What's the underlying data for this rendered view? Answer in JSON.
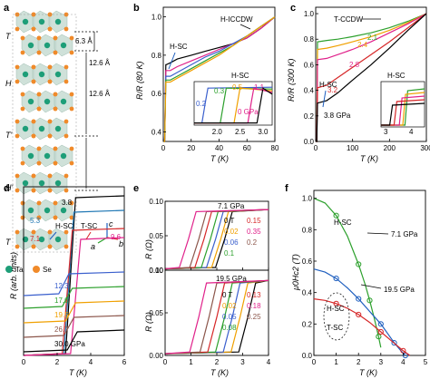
{
  "panels": {
    "a": {
      "label": "a",
      "layers": [
        "T",
        "H",
        "T'",
        "H'",
        "T"
      ],
      "dims": [
        "6.3 Å",
        "12.6 Å",
        "12.6 Å"
      ],
      "axes": {
        "c": "c",
        "a": "a",
        "b": "b"
      },
      "legend": [
        {
          "name": "Ta",
          "color": "#1e9e78"
        },
        {
          "name": "Se",
          "color": "#f08a2a"
        }
      ]
    },
    "b": {
      "label": "b",
      "ylabel": "R/R (80 K)",
      "xlabel": "T (K)",
      "ann_hiccdw": "H-ICCDW",
      "ann_hsc": "H-SC",
      "inset_title": "H-SC",
      "inset_labels": [
        "0.2",
        "0.3",
        "0.5",
        "1.1",
        "0 GPa"
      ]
    },
    "c": {
      "label": "c",
      "ylabel": "R/R (300 K)",
      "xlabel": "T (K)",
      "ann_tccdw": "T-CCDW",
      "ann_hsc": "H-SC",
      "pressure_labels": [
        "2.1",
        "2.4",
        "2.8",
        "3.2",
        "3.8 GPa"
      ],
      "inset_title": "H-SC"
    },
    "d": {
      "label": "d",
      "ylabel": "R (arb. units)",
      "xlabel": "T (K)",
      "top_labels": [
        "3.8",
        "5.3",
        "7.1",
        "9.6"
      ],
      "ann_hsc": "H-SC",
      "ann_tsc": "T-SC",
      "legend": [
        "12.3",
        "17.0",
        "19.5",
        "26.7",
        "30.0 GPa"
      ]
    },
    "e": {
      "label": "e",
      "ylabel_top": "R (Ω)",
      "ylabel_bot": "R (Ω)",
      "xlabel": "T (K)",
      "top_pressure": "7.1 GPa",
      "top_fields_left": [
        "0 T",
        "0.02",
        "0.06",
        "0.1"
      ],
      "top_fields_right": [
        "0.15",
        "0.35",
        "0.2"
      ],
      "bot_pressure": "19.5 GPa",
      "bot_fields_left": [
        "0 T",
        "0.02",
        "0.05",
        "0.08"
      ],
      "bot_fields_right": [
        "0.13",
        "0.18",
        "0.25"
      ]
    },
    "f": {
      "label": "f",
      "ylabel": "μ0Hc2 (T)",
      "xlabel": "T (K)",
      "ann_hsc": "H-SC",
      "ann_71": "7.1 GPa",
      "ann_195": "19.5 GPa",
      "ann_hsc2": "H-SC",
      "ann_tsc2": "T-SC"
    }
  },
  "chart_data": [
    {
      "type": "line",
      "panel": "b",
      "xlabel": "T (K)",
      "ylabel": "R/R (80 K)",
      "xlim": [
        0,
        80
      ],
      "ylim": [
        0.35,
        1.05
      ],
      "xticks": [
        "0",
        "20",
        "40",
        "60",
        "80"
      ],
      "yticks": [
        "0.4",
        "0.6",
        "0.8",
        "1.0"
      ],
      "series": [
        {
          "color": "#000000",
          "x": [
            2,
            5,
            10,
            20,
            30,
            40,
            50,
            60,
            70,
            80
          ],
          "y": [
            0.75,
            0.76,
            0.78,
            0.8,
            0.82,
            0.84,
            0.86,
            0.89,
            0.94,
            1.0
          ]
        },
        {
          "color": "#e0218a",
          "x": [
            2,
            5,
            10,
            20,
            30,
            40,
            50,
            60,
            70,
            80
          ],
          "y": [
            0.72,
            0.72,
            0.74,
            0.77,
            0.8,
            0.83,
            0.86,
            0.89,
            0.94,
            1.0
          ]
        },
        {
          "color": "#3a5fcd",
          "x": [
            2,
            5,
            10,
            20,
            30,
            40,
            50,
            60,
            70,
            80
          ],
          "y": [
            0.69,
            0.69,
            0.71,
            0.75,
            0.79,
            0.82,
            0.86,
            0.9,
            0.95,
            1.0
          ]
        },
        {
          "color": "#2ca02c",
          "x": [
            2,
            5,
            10,
            20,
            30,
            40,
            50,
            60,
            70,
            80
          ],
          "y": [
            0.67,
            0.67,
            0.69,
            0.73,
            0.77,
            0.81,
            0.85,
            0.9,
            0.95,
            1.0
          ]
        },
        {
          "color": "#f0a000",
          "x": [
            2,
            5,
            10,
            20,
            30,
            40,
            50,
            60,
            70,
            80
          ],
          "y": [
            0.66,
            0.66,
            0.68,
            0.72,
            0.76,
            0.8,
            0.85,
            0.9,
            0.95,
            1.0
          ]
        }
      ],
      "inset": {
        "xlim": [
          1.5,
          3.2
        ],
        "ylim": [
          0,
          1
        ],
        "xticks": [
          "2.0",
          "2.5",
          "3.0"
        ]
      }
    },
    {
      "type": "line",
      "panel": "c",
      "xlabel": "T (K)",
      "ylabel": "R/R (300 K)",
      "xlim": [
        0,
        300
      ],
      "ylim": [
        0,
        1.05
      ],
      "xticks": [
        "0",
        "100",
        "200",
        "300"
      ],
      "yticks": [
        "0.0",
        "0.2",
        "0.4",
        "0.6",
        "0.8",
        "1.0"
      ],
      "series": [
        {
          "name": "2.1",
          "color": "#2ca02c",
          "x": [
            5,
            30,
            60,
            100,
            150,
            200,
            250,
            300
          ],
          "y": [
            0.78,
            0.79,
            0.8,
            0.82,
            0.85,
            0.89,
            0.94,
            1.0
          ]
        },
        {
          "name": "2.4",
          "color": "#f0a000",
          "x": [
            5,
            30,
            60,
            100,
            150,
            200,
            250,
            300
          ],
          "y": [
            0.72,
            0.73,
            0.75,
            0.78,
            0.82,
            0.87,
            0.93,
            1.0
          ]
        },
        {
          "name": "2.8",
          "color": "#e0218a",
          "x": [
            5,
            30,
            60,
            100,
            150,
            200,
            250,
            300
          ],
          "y": [
            0.64,
            0.65,
            0.68,
            0.72,
            0.78,
            0.85,
            0.92,
            1.0
          ]
        },
        {
          "name": "3.2",
          "color": "#d62728",
          "x": [
            5,
            30,
            60,
            100,
            150,
            200,
            250,
            300
          ],
          "y": [
            0.42,
            0.44,
            0.5,
            0.58,
            0.68,
            0.78,
            0.89,
            1.0
          ]
        },
        {
          "name": "3.8 GPa",
          "color": "#000000",
          "x": [
            5,
            30,
            60,
            100,
            150,
            200,
            250,
            300
          ],
          "y": [
            0.3,
            0.32,
            0.38,
            0.48,
            0.6,
            0.73,
            0.87,
            1.0
          ]
        }
      ],
      "inset": {
        "xticks": [
          "3",
          "4"
        ]
      }
    },
    {
      "type": "line",
      "panel": "d",
      "xlabel": "T (K)",
      "ylabel": "R (arb. units)",
      "xlim": [
        0,
        6
      ],
      "xticks": [
        "0",
        "2",
        "4",
        "6"
      ],
      "series": [
        {
          "name": "3.8",
          "color": "#000000"
        },
        {
          "name": "5.3",
          "color": "#1f77b4"
        },
        {
          "name": "7.1",
          "color": "#d62728"
        },
        {
          "name": "9.6",
          "color": "#e0218a"
        },
        {
          "name": "12.3",
          "color": "#3a5fcd"
        },
        {
          "name": "17.0",
          "color": "#2ca02c"
        },
        {
          "name": "19.5",
          "color": "#f0a000"
        },
        {
          "name": "26.7",
          "color": "#8c564b"
        },
        {
          "name": "30.0 GPa",
          "color": "#000000"
        }
      ]
    },
    {
      "type": "line",
      "panel": "e",
      "xlabel": "T (K)",
      "ylabel": "R (Ω)",
      "xlim": [
        0,
        4
      ],
      "xticks": [
        "0",
        "1",
        "2",
        "3",
        "4"
      ],
      "top": {
        "pressure": "7.1 GPa",
        "ylim": [
          0,
          0.1
        ],
        "yticks": [
          "0.00",
          "0.05",
          "0.10"
        ],
        "fields": [
          "0 T",
          "0.02",
          "0.06",
          "0.1",
          "0.15",
          "0.2",
          "0.35"
        ],
        "tc": [
          2.3,
          2.15,
          1.95,
          1.75,
          1.5,
          1.3,
          0.9
        ]
      },
      "bottom": {
        "pressure": "19.5 GPa",
        "ylim": [
          0,
          0.1
        ],
        "yticks": [
          "0.00",
          "0.05",
          "0.10"
        ],
        "fields": [
          "0 T",
          "0.02",
          "0.05",
          "0.08",
          "0.13",
          "0.18",
          "0.25"
        ],
        "tc": [
          3.2,
          2.9,
          2.6,
          2.3,
          2.0,
          1.7,
          1.3
        ]
      }
    },
    {
      "type": "scatter",
      "panel": "f",
      "xlabel": "T (K)",
      "ylabel": "μ0Hc2 (T)",
      "xlim": [
        0,
        5
      ],
      "ylim": [
        0,
        1.05
      ],
      "xticks": [
        "0",
        "1",
        "2",
        "3",
        "4",
        "5"
      ],
      "yticks": [
        "0.0",
        "0.2",
        "0.4",
        "0.6",
        "0.8",
        "1.0"
      ],
      "series": [
        {
          "name": "7.1 GPa",
          "color": "#2ca02c",
          "x": [
            0,
            0.5,
            1,
            1.5,
            2,
            2.3,
            2.5,
            2.7,
            2.9,
            3.0
          ],
          "y": [
            1.0,
            0.97,
            0.89,
            0.76,
            0.58,
            0.45,
            0.35,
            0.24,
            0.12,
            0.05
          ]
        },
        {
          "name": "19.5 GPa",
          "color": "#1f5fbf",
          "x": [
            0,
            0.5,
            1,
            1.5,
            2,
            2.5,
            3,
            3.3,
            3.6,
            3.9,
            4.1
          ],
          "y": [
            0.55,
            0.53,
            0.49,
            0.43,
            0.36,
            0.28,
            0.2,
            0.14,
            0.08,
            0.03,
            0.0
          ]
        },
        {
          "name": "T-SC",
          "color": "#d62728",
          "x": [
            0,
            0.5,
            1,
            1.5,
            2,
            2.5,
            3,
            3.5,
            4,
            4.3
          ],
          "y": [
            0.36,
            0.35,
            0.33,
            0.3,
            0.26,
            0.21,
            0.15,
            0.09,
            0.03,
            0.0
          ]
        }
      ]
    }
  ]
}
